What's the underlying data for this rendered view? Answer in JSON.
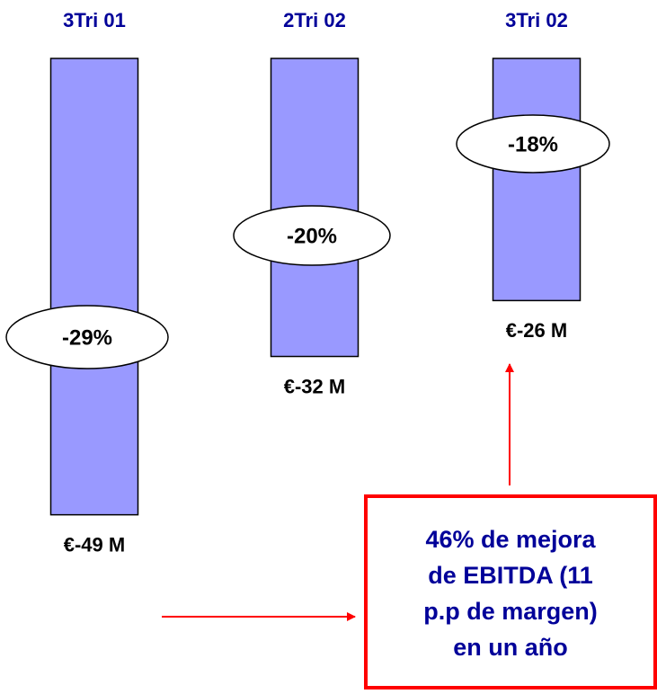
{
  "chart_data": {
    "type": "bar",
    "categories": [
      "3Tri 01",
      "2Tri 02",
      "3Tri 02"
    ],
    "values": [
      -49,
      -32,
      -26
    ],
    "value_labels": [
      "€-49 M",
      "€-32 M",
      "€-26 M"
    ],
    "margin_labels": [
      "-29%",
      "-20%",
      "-18%"
    ],
    "color": "#9999ff",
    "ylim": [
      -50,
      0
    ],
    "annotation": [
      "46% de mejora",
      "de EBITDA (11",
      "p.p de margen)",
      "en un año"
    ]
  }
}
